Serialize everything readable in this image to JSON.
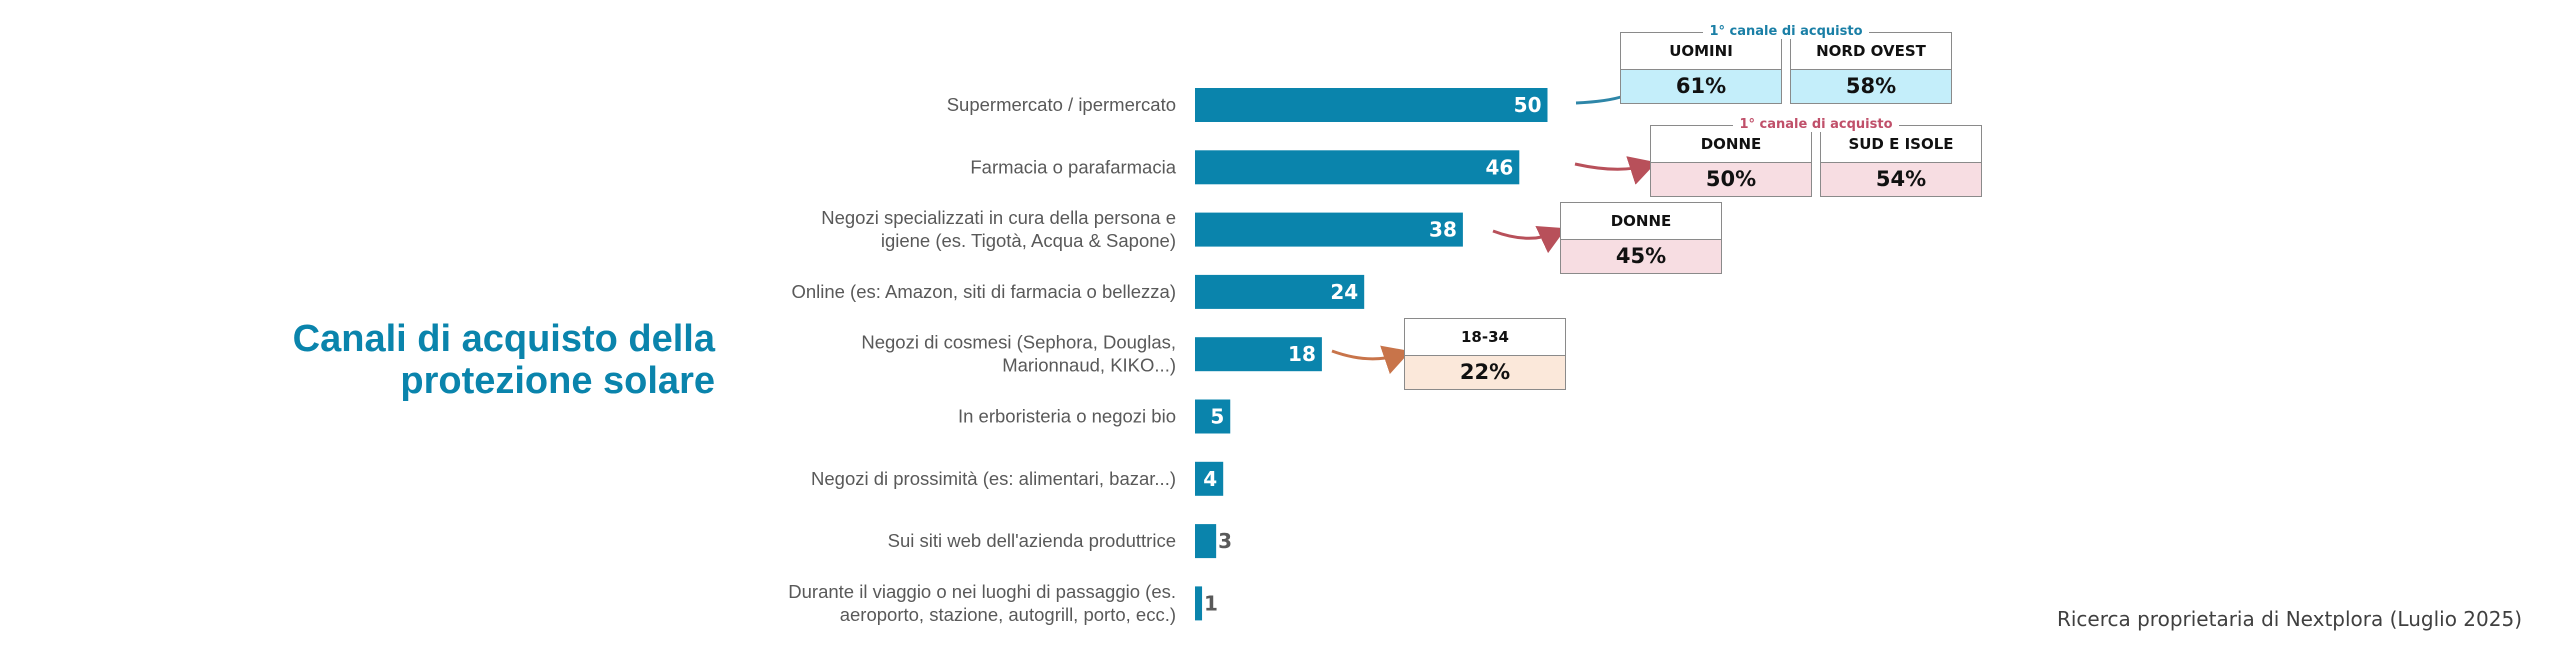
{
  "title": "Canali di acquisto della protezione solare",
  "source": "Ricerca proprietaria di Nextplora (Luglio 2025)",
  "colors": {
    "bar": "#0a84ac",
    "title": "#0a84ac",
    "blue_head": "#1a7fa6",
    "red_head": "#c0506a",
    "blue_fill": "#c4eefa",
    "pink_fill": "#f7dde2",
    "peach_fill": "#fbe8da"
  },
  "chart_data": {
    "type": "bar",
    "orientation": "horizontal",
    "categories": [
      "Supermercato / ipermercato",
      "Farmacia o parafarmacia",
      "Negozi specializzati in cura della persona e igiene (es. Tigotà, Acqua & Sapone)",
      "Online (es: Amazon, siti di farmacia o bellezza)",
      "Negozi di cosmesi (Sephora, Douglas, Marionnaud, KIKO...)",
      "In erboristeria o negozi bio",
      "Negozi di prossimità (es: alimentari, bazar...)",
      "Sui siti web dell'azienda produttrice",
      "Durante il viaggio o nei luoghi di passaggio (es. aeroporto, stazione, autogrill, porto, ecc.)"
    ],
    "category_lines": [
      [
        "Supermercato / ipermercato"
      ],
      [
        "Farmacia o parafarmacia"
      ],
      [
        "Negozi specializzati in cura della persona e",
        "igiene (es. Tigotà, Acqua & Sapone)"
      ],
      [
        "Online (es: Amazon, siti di farmacia o bellezza)"
      ],
      [
        "Negozi di cosmesi (Sephora, Douglas,",
        "Marionnaud, KIKO...)"
      ],
      [
        "In erboristeria o negozi bio"
      ],
      [
        "Negozi di prossimità (es: alimentari, bazar...)"
      ],
      [
        "Sui siti web dell'azienda produttrice"
      ],
      [
        "Durante il viaggio o nei luoghi di passaggio (es.",
        "aeroporto, stazione, autogrill, porto, ecc.)"
      ]
    ],
    "values": [
      50,
      46,
      38,
      24,
      18,
      5,
      4,
      3,
      1
    ],
    "title": "",
    "xlabel": "",
    "ylabel": "",
    "grid": false,
    "legend": "none"
  },
  "callouts": [
    {
      "bar_index": 0,
      "header": "1° canale di acquisto",
      "header_color": "blue",
      "arrow_color": "#2e86a8",
      "boxes": [
        {
          "label": "UOMINI",
          "value": "61%",
          "fill": "blue"
        },
        {
          "label": "NORD OVEST",
          "value": "58%",
          "fill": "blue"
        }
      ]
    },
    {
      "bar_index": 1,
      "header": "1° canale di acquisto",
      "header_color": "red",
      "arrow_color": "#b8505a",
      "boxes": [
        {
          "label": "DONNE",
          "value": "50%",
          "fill": "pink"
        },
        {
          "label": "SUD E ISOLE",
          "value": "54%",
          "fill": "pink"
        }
      ]
    },
    {
      "bar_index": 2,
      "header": "",
      "header_color": "red",
      "arrow_color": "#b8505a",
      "boxes": [
        {
          "label": "DONNE",
          "value": "45%",
          "fill": "pink"
        }
      ]
    },
    {
      "bar_index": 4,
      "header": "",
      "header_color": "red",
      "arrow_color": "#c8744a",
      "boxes": [
        {
          "label": "18-34",
          "value": "22%",
          "fill": "peach"
        }
      ]
    }
  ]
}
